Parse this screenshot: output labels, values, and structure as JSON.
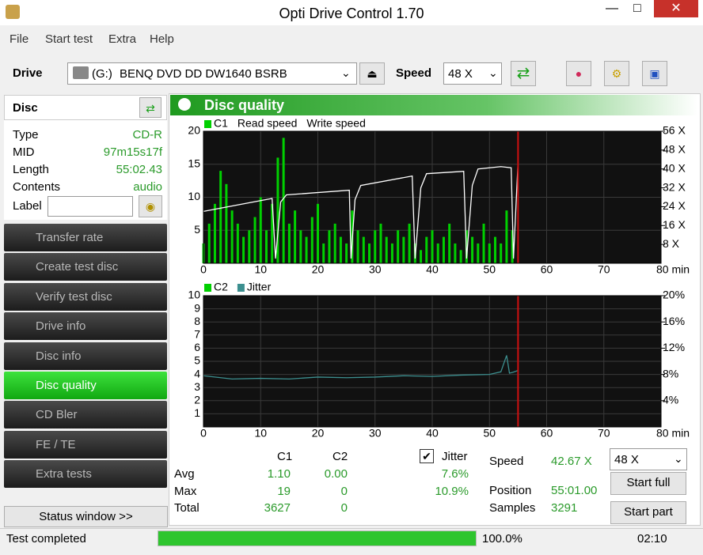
{
  "window_title": "Opti Drive Control 1.70",
  "menu": [
    "File",
    "Start test",
    "Extra",
    "Help"
  ],
  "toolbar": {
    "drive_label": "Drive",
    "drive_letter": "(G:)",
    "drive_name": "BENQ DVD DD DW1640 BSRB",
    "speed_label": "Speed",
    "speed_value": "48 X"
  },
  "disc": {
    "title": "Disc",
    "rows": [
      [
        "Type",
        "CD-R"
      ],
      [
        "MID",
        "97m15s17f"
      ],
      [
        "Length",
        "55:02.43"
      ],
      [
        "Contents",
        "audio"
      ]
    ],
    "label": "Label"
  },
  "nav": {
    "items": [
      "Transfer rate",
      "Create test disc",
      "Verify test disc",
      "Drive info",
      "Disc info",
      "Disc quality",
      "CD Bler",
      "FE / TE",
      "Extra tests"
    ],
    "active": 5,
    "status_button": "Status window >>"
  },
  "panel_title": "Disc quality",
  "chart_data": [
    {
      "type": "bar_line",
      "grid": true,
      "marker_x": 55,
      "marker_color": "#d01010",
      "xlim": [
        0,
        80
      ],
      "xticks": [
        0,
        10,
        20,
        30,
        40,
        50,
        60,
        70,
        {
          "value": 80,
          "label": "80 min"
        }
      ],
      "ylim": [
        0,
        20
      ],
      "yticks": [
        5,
        10,
        15,
        20
      ],
      "y2lim": [
        0,
        56
      ],
      "y2ticks": [
        {
          "value": 8,
          "label": "8 X"
        },
        {
          "value": 16,
          "label": "16 X"
        },
        {
          "value": 24,
          "label": "24 X"
        },
        {
          "value": 32,
          "label": "32 X"
        },
        {
          "value": 40,
          "label": "40 X"
        },
        {
          "value": 48,
          "label": "48 X"
        },
        {
          "value": 56,
          "label": "56 X"
        }
      ],
      "series": [
        {
          "name": "C1",
          "color": "#00d000",
          "kind": "bar",
          "x": [
            0,
            1,
            2,
            3,
            4,
            5,
            6,
            7,
            8,
            9,
            10,
            11,
            12,
            13,
            14,
            15,
            16,
            17,
            18,
            19,
            20,
            21,
            22,
            23,
            24,
            25,
            26,
            27,
            28,
            29,
            30,
            31,
            32,
            33,
            34,
            35,
            36,
            37,
            38,
            39,
            40,
            41,
            42,
            43,
            44,
            45,
            46,
            47,
            48,
            49,
            50,
            51,
            52,
            53,
            54
          ],
          "values": [
            3,
            6,
            9,
            14,
            12,
            8,
            6,
            4,
            5,
            7,
            10,
            5,
            9,
            16,
            19,
            6,
            8,
            5,
            4,
            7,
            9,
            3,
            5,
            6,
            4,
            3,
            8,
            5,
            4,
            3,
            5,
            6,
            4,
            3,
            5,
            4,
            6,
            3,
            2,
            4,
            5,
            3,
            4,
            6,
            3,
            2,
            5,
            4,
            3,
            6,
            3,
            4,
            3,
            8,
            5
          ]
        },
        {
          "name": "Read speed",
          "color": "#ffffff",
          "kind": "line",
          "axis": "y2",
          "x": [
            0,
            12,
            12.6,
            13.5,
            14.5,
            25.5,
            25.8,
            26.5,
            27.5,
            36.5,
            37,
            38,
            39,
            45.5,
            46,
            47,
            48,
            52,
            53.8,
            54.2,
            55
          ],
          "values": [
            22,
            27.5,
            2,
            26,
            29,
            31,
            2,
            27,
            33,
            37,
            2,
            32,
            38,
            39,
            2,
            33,
            40,
            41,
            40.5,
            2,
            42.7
          ]
        },
        {
          "name": "Write speed",
          "color": "#ffffff",
          "kind": "line",
          "axis": "y2",
          "x": [],
          "values": []
        }
      ]
    },
    {
      "type": "line",
      "grid": true,
      "marker_x": 55,
      "marker_color": "#d01010",
      "xlim": [
        0,
        80
      ],
      "xticks": [
        0,
        10,
        20,
        30,
        40,
        50,
        60,
        70,
        {
          "value": 80,
          "label": "80 min"
        }
      ],
      "ylim": [
        0,
        10
      ],
      "yticks": [
        1,
        2,
        3,
        4,
        5,
        6,
        7,
        8,
        9,
        10
      ],
      "y2lim": [
        0,
        20
      ],
      "y2ticks": [
        {
          "value": 4,
          "label": "4%"
        },
        {
          "value": 8,
          "label": "8%"
        },
        {
          "value": 12,
          "label": "12%"
        },
        {
          "value": 16,
          "label": "16%"
        },
        {
          "value": 20,
          "label": "20%"
        }
      ],
      "series": [
        {
          "name": "C2",
          "color": "#00d000",
          "kind": "bar",
          "x": [],
          "values": []
        },
        {
          "name": "Jitter",
          "color": "#3c8f8f",
          "kind": "line",
          "axis": "y2",
          "x": [
            0,
            5,
            10,
            15,
            20,
            25,
            30,
            35,
            40,
            45,
            50,
            52,
            53,
            53.5,
            54,
            55
          ],
          "values": [
            7.8,
            7.3,
            7.4,
            7.3,
            7.6,
            7.5,
            7.6,
            7.8,
            7.7,
            7.9,
            8.0,
            8.4,
            10.9,
            8.2,
            8.3,
            8.6
          ]
        }
      ]
    }
  ],
  "stats": {
    "headers": [
      "C1",
      "C2"
    ],
    "jitter_label": "Jitter",
    "rows": [
      [
        "Avg",
        "1.10",
        "0.00",
        "7.6%"
      ],
      [
        "Max",
        "19",
        "0",
        "10.9%"
      ],
      [
        "Total",
        "3627",
        "0"
      ]
    ],
    "info": [
      [
        "Speed",
        "42.67 X"
      ],
      [
        "Position",
        "55:01.00"
      ],
      [
        "Samples",
        "3291"
      ]
    ],
    "speed_select": "48 X",
    "buttons": [
      "Start full",
      "Start part"
    ]
  },
  "status_bar": {
    "message": "Test completed",
    "progress": 100,
    "progress_label": "100.0%",
    "time": "02:10"
  }
}
